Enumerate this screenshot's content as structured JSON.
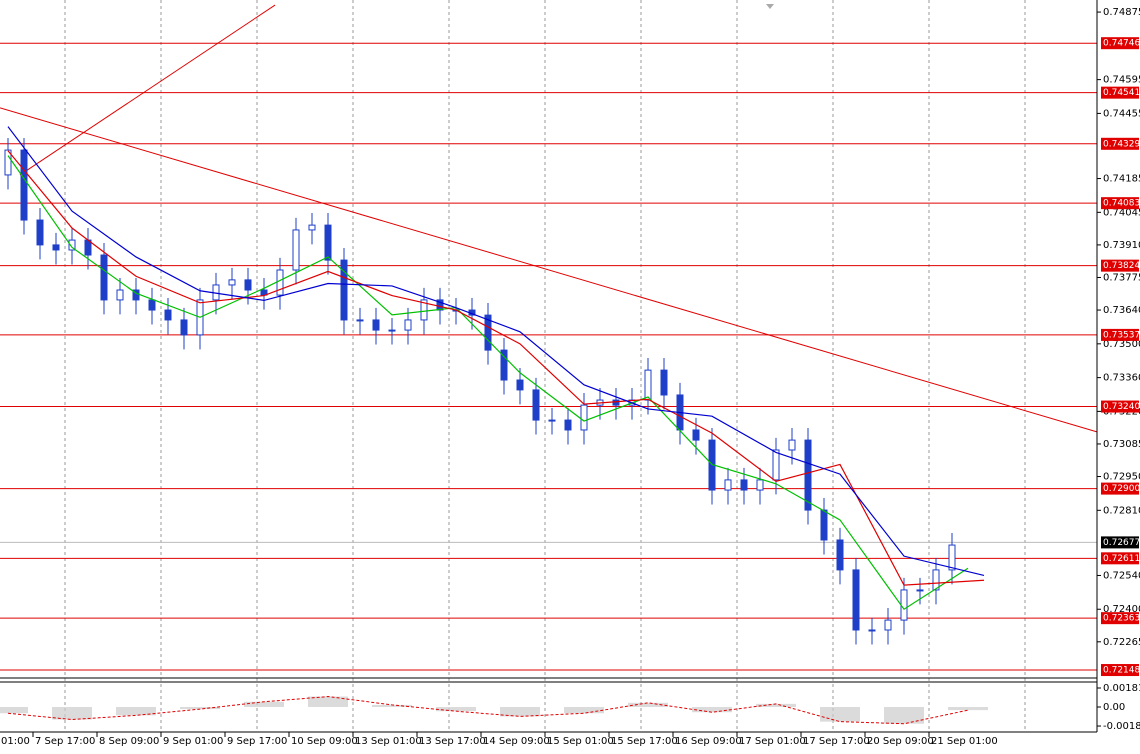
{
  "chart_data": {
    "type": "candlestick",
    "ylim": [
      0.72115,
      0.74925
    ],
    "yticks": [
      0.74875,
      0.74595,
      0.74455,
      0.74185,
      0.74045,
      {
        "value": 0.7391,
        "label": "0.73910"
      },
      0.73775,
      {
        "value": 0.7364,
        "label": "0.73640"
      },
      {
        "value": 0.735,
        "label": "0.73500"
      },
      {
        "value": 0.7336,
        "label": "0.73360"
      },
      {
        "value": 0.7322,
        "label": "0.73220"
      },
      0.73085,
      {
        "value": 0.7295,
        "label": "0.72950"
      },
      {
        "value": 0.7281,
        "label": "0.72810"
      },
      {
        "value": 0.7254,
        "label": "0.72540"
      },
      {
        "value": 0.724,
        "label": "0.72400"
      },
      0.72265
    ],
    "x_labels": [
      "01:00",
      "7 Sep 17:00",
      "8 Sep 09:00",
      "9 Sep 01:00",
      "9 Sep 17:00",
      "10 Sep 09:00",
      "13 Sep 01:00",
      "13 Sep 17:00",
      "14 Sep 09:00",
      "15 Sep 01:00",
      "15 Sep 17:00",
      "16 Sep 09:00",
      "17 Sep 01:00",
      "17 Sep 17:00",
      "20 Sep 09:00",
      "21 Sep 01:00"
    ],
    "color": "#1f3fc8",
    "open": [
      0.742,
      0.74303,
      0.74013,
      0.7391,
      0.73889,
      0.7393,
      0.73868,
      0.73682,
      0.73723,
      0.73682,
      0.7364,
      0.73599,
      0.73537,
      0.73682,
      0.73744,
      0.73765,
      0.73723,
      0.73702,
      0.73806,
      0.73972,
      0.73992,
      0.73847,
      0.73599,
      0.73599,
      0.73557,
      0.73557,
      0.73599,
      0.73682,
      0.7364,
      0.7364,
      0.73619,
      0.73474,
      0.7335,
      0.73309,
      0.73184,
      0.73184,
      0.73143,
      0.73246,
      0.73267,
      0.73246,
      0.73267,
      0.73391,
      0.73288,
      0.73143,
      0.73101,
      0.72894,
      0.72936,
      0.72894,
      0.72936,
      0.7306,
      0.73101,
      0.72811,
      0.72687,
      0.72563,
      0.72314,
      0.72314,
      0.72355,
      0.7248,
      0.7248,
      0.72563
    ],
    "high": [
      0.74353,
      0.74353,
      0.74063,
      0.7396,
      0.7398,
      0.7398,
      0.73918,
      0.73773,
      0.73773,
      0.73732,
      0.7369,
      0.73649,
      0.73732,
      0.73794,
      0.73815,
      0.73815,
      0.73773,
      0.73856,
      0.74022,
      0.74042,
      0.74042,
      0.73897,
      0.73649,
      0.73649,
      0.73607,
      0.73649,
      0.73732,
      0.73732,
      0.7369,
      0.7369,
      0.73669,
      0.73524,
      0.734,
      0.73359,
      0.73234,
      0.73234,
      0.73296,
      0.73317,
      0.73317,
      0.73317,
      0.73441,
      0.73441,
      0.73338,
      0.73193,
      0.73151,
      0.72986,
      0.72986,
      0.72986,
      0.7311,
      0.73151,
      0.73151,
      0.72861,
      0.72737,
      0.72613,
      0.72364,
      0.72405,
      0.7253,
      0.7253,
      0.72613,
      0.72716
    ],
    "low": [
      0.7414,
      0.73953,
      0.7385,
      0.73829,
      0.73829,
      0.73808,
      0.73622,
      0.73622,
      0.73622,
      0.7358,
      0.73539,
      0.73477,
      0.73477,
      0.73622,
      0.73684,
      0.73663,
      0.73642,
      0.73642,
      0.73746,
      0.73912,
      0.73787,
      0.73539,
      0.73539,
      0.73497,
      0.73497,
      0.73497,
      0.73539,
      0.7358,
      0.7358,
      0.73559,
      0.73414,
      0.7329,
      0.73249,
      0.73124,
      0.73124,
      0.73083,
      0.73083,
      0.73186,
      0.73186,
      0.73186,
      0.73207,
      0.73228,
      0.73083,
      0.73041,
      0.72834,
      0.72834,
      0.72834,
      0.72834,
      0.72876,
      0.73,
      0.72751,
      0.72627,
      0.72503,
      0.72254,
      0.72254,
      0.72254,
      0.72295,
      0.7242,
      0.7242,
      0.72503
    ],
    "close": [
      0.74303,
      0.74013,
      0.7391,
      0.73889,
      0.7393,
      0.73868,
      0.73682,
      0.73723,
      0.73682,
      0.7364,
      0.73599,
      0.73537,
      0.73682,
      0.73744,
      0.73765,
      0.73723,
      0.73702,
      0.73806,
      0.73972,
      0.73992,
      0.73847,
      0.73599,
      0.73599,
      0.73557,
      0.73557,
      0.73599,
      0.73682,
      0.7364,
      0.7364,
      0.73619,
      0.73474,
      0.7335,
      0.73309,
      0.73184,
      0.73184,
      0.73143,
      0.73246,
      0.73267,
      0.73246,
      0.73267,
      0.73391,
      0.73288,
      0.73143,
      0.73101,
      0.72894,
      0.72936,
      0.72894,
      0.72936,
      0.7306,
      0.73101,
      0.72811,
      0.72687,
      0.72563,
      0.72314,
      0.72314,
      0.72355,
      0.7248,
      0.7248,
      0.72563,
      0.72666
    ],
    "moving_averages": [
      {
        "color": "#00c000",
        "x": [
          0,
          4,
          8,
          12,
          16,
          20,
          24,
          28,
          32,
          36,
          40,
          44,
          48,
          52,
          56,
          60
        ],
        "values": [
          0.7428,
          0.739,
          0.7371,
          0.7361,
          0.7373,
          0.7386,
          0.7362,
          0.7365,
          0.7338,
          0.7318,
          0.7328,
          0.73,
          0.7292,
          0.7277,
          0.724,
          0.7257
        ]
      },
      {
        "color": "#e00000",
        "x": [
          0,
          4,
          8,
          12,
          16,
          20,
          24,
          28,
          32,
          36,
          40,
          44,
          48,
          52,
          56,
          61
        ],
        "values": [
          0.743,
          0.7398,
          0.7378,
          0.7367,
          0.737,
          0.738,
          0.737,
          0.7364,
          0.735,
          0.7325,
          0.7327,
          0.7313,
          0.7293,
          0.73,
          0.725,
          0.7252
        ]
      },
      {
        "color": "#0000d0",
        "x": [
          0,
          4,
          8,
          12,
          16,
          20,
          24,
          28,
          32,
          36,
          40,
          44,
          48,
          52,
          56,
          61
        ],
        "values": [
          0.744,
          0.7405,
          0.7386,
          0.7372,
          0.7368,
          0.7375,
          0.7374,
          0.7365,
          0.7355,
          0.7333,
          0.7323,
          0.732,
          0.7305,
          0.7296,
          0.7262,
          0.7254
        ]
      }
    ],
    "trend_lines": [
      {
        "x": [
          -0.5,
          68.06
        ],
        "values": [
          0.74478,
          0.73135
        ]
      },
      {
        "x": [
          0.75,
          16.69
        ],
        "values": [
          0.742,
          0.74904
        ]
      }
    ],
    "levels": {
      "color": "#e00000",
      "values": [
        0.74746,
        0.74541,
        0.74329,
        0.74083,
        0.73824,
        0.73537,
        0.7324,
        0.729,
        0.72611,
        0.72363,
        0.72148
      ],
      "value_labels": [
        "0.74746",
        "0.74541",
        "0.74329",
        "0.74083",
        "0.73824",
        "0.73537",
        "0.73240",
        "0.72900",
        "0.72611",
        "0.72363",
        "0.72148"
      ]
    },
    "current_price": 0.72677,
    "oscillator": {
      "ylim": [
        -0.0022,
        0.0022
      ],
      "yticks": [
        0.001818,
        {
          "value": 0,
          "label": "0.00"
        },
        -0.00182
      ],
      "x": [
        0,
        4,
        8,
        12,
        16,
        20,
        24,
        28,
        32,
        36,
        40,
        44,
        48,
        52,
        56,
        60
      ],
      "values": [
        -0.0006,
        -0.0012,
        -0.0008,
        -0.0002,
        0.0005,
        0.001,
        0.0002,
        -0.0004,
        -0.0009,
        -0.0006,
        0.0004,
        -0.0005,
        0.0003,
        -0.0014,
        -0.0016,
        -0.0003
      ]
    }
  }
}
